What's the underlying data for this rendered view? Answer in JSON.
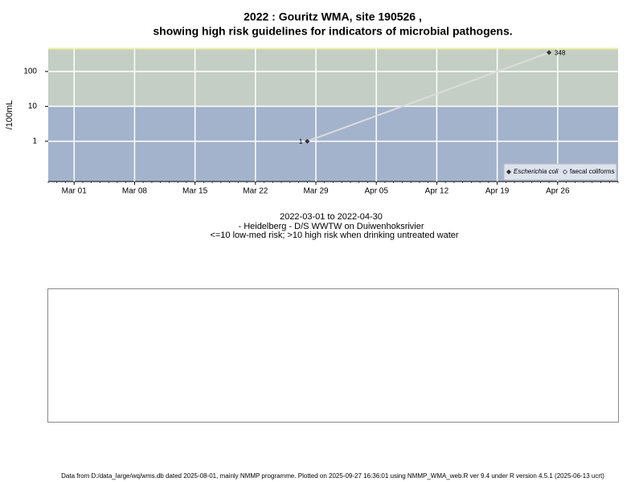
{
  "chart_data": {
    "type": "line",
    "title": "2022 : Gouritz WMA, site 190526 ,",
    "title_line2": "showing high risk guidelines for indicators of microbial pathogens.",
    "subtitle": [
      "2022-03-01 to 2022-04-30",
      "- Heidelberg - D/S WWTW on Duiwenhoksrivier",
      "<=10 low-med risk; >10 high risk when drinking untreated water"
    ],
    "y_label": "/100mL",
    "x": [
      "2022-03-28",
      "2022-04-25"
    ],
    "series": [
      {
        "name": "Escherichia coli",
        "color": "#333333",
        "values": [
          1,
          348
        ]
      },
      {
        "name": "faecal coliforms",
        "color": "#333333",
        "values": [
          null,
          null
        ]
      }
    ],
    "xlim": [
      "2022-02-26",
      "2022-05-03"
    ],
    "xticks": [
      {
        "value": "2022-03-01",
        "label": "Mar 01"
      },
      {
        "value": "2022-03-08",
        "label": "Mar 08"
      },
      {
        "value": "2022-03-15",
        "label": "Mar 15"
      },
      {
        "value": "2022-03-22",
        "label": "Mar 22"
      },
      {
        "value": "2022-03-29",
        "label": "Mar 29"
      },
      {
        "value": "2022-04-05",
        "label": "Apr 05"
      },
      {
        "value": "2022-04-12",
        "label": "Apr 12"
      },
      {
        "value": "2022-04-19",
        "label": "Apr 19"
      },
      {
        "value": "2022-04-26",
        "label": "Apr 26"
      }
    ],
    "ylim": [
      0.07,
      464
    ],
    "yticks": [
      1,
      10,
      100
    ],
    "log_y": true,
    "risk_threshold": 10,
    "low_risk_color": "#a3b3cc",
    "high_risk_color": "#c4cec4",
    "grid": true,
    "legend": "bottom-right",
    "footer": "Data from D:/data_large/wq/wms.db dated 2025-08-01, mainly NMMP programme. Plotted on 2025-09-27 16:36:01 using NMMP_WMA_web.R ver 9.4 under R version 4.5.1 (2025-06-13 ucrt)"
  }
}
